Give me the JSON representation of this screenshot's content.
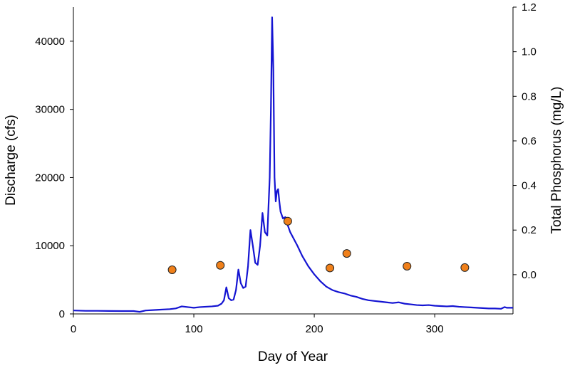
{
  "chart_data": {
    "type": "line",
    "xlabel": "Day of Year",
    "ylabel": "Discharge (cfs)",
    "y2label": "Total Phosphorus (mg/L)",
    "xlim": [
      0,
      365
    ],
    "ylim": [
      0,
      45000
    ],
    "y2lim": [
      -0.176,
      1.2
    ],
    "xticks": [
      0,
      100,
      200,
      300
    ],
    "yticks": [
      0,
      10000,
      20000,
      30000,
      40000
    ],
    "y2ticks": [
      0.0,
      0.2,
      0.4,
      0.6,
      0.8,
      1.0,
      1.2
    ],
    "y2tick_labels": [
      "0.0",
      "0.2",
      "0.4",
      "0.6",
      "0.8",
      "1.0",
      "1.2"
    ],
    "grid": false,
    "colors": {
      "discharge": "#1414d2",
      "phosphorus": "#f0801a",
      "marker_edge": "#222222",
      "axis": "#000000"
    },
    "series": [
      {
        "axis": "left",
        "type": "line",
        "x": [
          0,
          10,
          20,
          30,
          40,
          50,
          55,
          60,
          70,
          80,
          85,
          90,
          95,
          100,
          105,
          110,
          115,
          120,
          123,
          125,
          127,
          129,
          131,
          133,
          135,
          137,
          139,
          141,
          143,
          145,
          147,
          149,
          151,
          153,
          155,
          157,
          159,
          161,
          163,
          164,
          165,
          166,
          167,
          168,
          169,
          170,
          171,
          172,
          174,
          176,
          178,
          180,
          183,
          186,
          190,
          195,
          200,
          205,
          210,
          215,
          220,
          225,
          230,
          235,
          240,
          245,
          250,
          255,
          260,
          265,
          270,
          275,
          280,
          285,
          290,
          295,
          300,
          305,
          310,
          315,
          320,
          325,
          330,
          335,
          340,
          345,
          350,
          355,
          358,
          360,
          365
        ],
        "y": [
          500,
          450,
          450,
          430,
          420,
          420,
          300,
          500,
          600,
          700,
          800,
          1100,
          1000,
          900,
          1000,
          1050,
          1100,
          1200,
          1500,
          2000,
          3900,
          2300,
          2000,
          2100,
          3500,
          6500,
          4500,
          3800,
          4000,
          7000,
          12300,
          10000,
          7500,
          7200,
          10000,
          14800,
          12000,
          11500,
          20000,
          30000,
          43500,
          36000,
          20000,
          16500,
          18000,
          18300,
          16500,
          15000,
          14000,
          14200,
          13000,
          12000,
          11000,
          10000,
          8500,
          7000,
          5800,
          4800,
          4000,
          3500,
          3200,
          3000,
          2700,
          2500,
          2200,
          2000,
          1900,
          1800,
          1700,
          1600,
          1700,
          1500,
          1400,
          1300,
          1250,
          1300,
          1200,
          1150,
          1100,
          1150,
          1050,
          1000,
          950,
          900,
          850,
          800,
          800,
          750,
          1000,
          900,
          900
        ]
      },
      {
        "axis": "right",
        "type": "scatter",
        "x": [
          82,
          122,
          178,
          213,
          227,
          277,
          325
        ],
        "y": [
          0.022,
          0.042,
          0.24,
          0.03,
          0.095,
          0.038,
          0.032
        ]
      }
    ]
  }
}
